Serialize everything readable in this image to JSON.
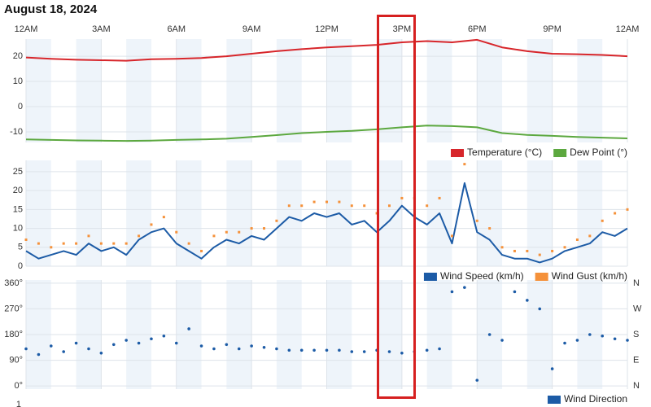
{
  "chart_data": [
    {
      "type": "line",
      "title": "August 18, 2024",
      "xlim": [
        0,
        24
      ],
      "xticks": [
        {
          "value": 0,
          "label": "12AM"
        },
        {
          "value": 3,
          "label": "3AM"
        },
        {
          "value": 6,
          "label": "6AM"
        },
        {
          "value": 9,
          "label": "9AM"
        },
        {
          "value": 12,
          "label": "12PM"
        },
        {
          "value": 15,
          "label": "3PM"
        },
        {
          "value": 18,
          "label": "6PM"
        },
        {
          "value": 21,
          "label": "9PM"
        },
        {
          "value": 24,
          "label": "12AM"
        }
      ],
      "ylim": [
        -14.2,
        26.8
      ],
      "yticks": [
        20,
        10,
        0,
        -10
      ],
      "grid": true,
      "legend": "bottom-right",
      "x": [
        0,
        1,
        2,
        3,
        4,
        5,
        6,
        7,
        8,
        9,
        10,
        11,
        12,
        13,
        14,
        15,
        16,
        17,
        18,
        19,
        20,
        21,
        22,
        23,
        24
      ],
      "series": [
        {
          "name": "Temperature (°C)",
          "color": "#d7262b",
          "values": [
            19.5,
            19,
            18.6,
            18.4,
            18.2,
            18.8,
            19,
            19.3,
            20,
            21,
            22,
            22.8,
            23.5,
            24,
            24.5,
            25.5,
            26,
            25.5,
            26.5,
            23.5,
            22,
            21,
            20.8,
            20.5,
            20
          ]
        },
        {
          "name": "Dew Point (°)",
          "color": "#5ca83f",
          "values": [
            -13,
            -13.2,
            -13.4,
            -13.5,
            -13.6,
            -13.5,
            -13.2,
            -13,
            -12.7,
            -12,
            -11.3,
            -10.5,
            -10,
            -9.6,
            -9,
            -8.2,
            -7.5,
            -7.7,
            -8.2,
            -10.5,
            -11.2,
            -11.6,
            -12,
            -12.3,
            -12.6
          ]
        }
      ]
    },
    {
      "type": "line",
      "xlim": [
        0,
        24
      ],
      "ylim": [
        0,
        28
      ],
      "yticks": [
        25,
        20,
        15,
        10,
        5,
        0
      ],
      "grid": true,
      "legend": "bottom-right",
      "x": [
        0,
        0.5,
        1,
        1.5,
        2,
        2.5,
        3,
        3.5,
        4,
        4.5,
        5,
        5.5,
        6,
        6.5,
        7,
        7.5,
        8,
        8.5,
        9,
        9.5,
        10,
        10.5,
        11,
        11.5,
        12,
        12.5,
        13,
        13.5,
        14,
        14.5,
        15,
        15.5,
        16,
        16.5,
        17,
        17.5,
        18,
        18.5,
        19,
        19.5,
        20,
        20.5,
        21,
        21.5,
        22,
        22.5,
        23,
        23.5,
        24
      ],
      "series": [
        {
          "name": "Wind Speed (km/h)",
          "color": "#1c5ba6",
          "mode": "line",
          "values": [
            4,
            2,
            3,
            4,
            3,
            6,
            4,
            5,
            3,
            7,
            9,
            10,
            6,
            4,
            2,
            5,
            7,
            6,
            8,
            7,
            10,
            13,
            12,
            14,
            13,
            14,
            11,
            12,
            9,
            12,
            16,
            13,
            11,
            14,
            6,
            22,
            9,
            7,
            3,
            2,
            2,
            1,
            2,
            4,
            5,
            6,
            9,
            8,
            10
          ]
        },
        {
          "name": "Wind Gust (km/h)",
          "color": "#f5913a",
          "mode": "markers",
          "values": [
            7,
            6,
            5,
            6,
            6,
            8,
            6,
            6,
            6,
            8,
            11,
            13,
            9,
            6,
            4,
            8,
            9,
            9,
            10,
            10,
            12,
            16,
            16,
            17,
            17,
            17,
            16,
            16,
            14,
            16,
            18,
            18,
            16,
            18,
            8,
            27,
            12,
            10,
            5,
            4,
            4,
            3,
            4,
            5,
            7,
            8,
            12,
            14,
            15
          ]
        }
      ]
    },
    {
      "type": "scatter",
      "xlim": [
        0,
        24
      ],
      "ylim": [
        -11,
        371
      ],
      "yticks": [
        {
          "value": 360,
          "label": "360°"
        },
        {
          "value": 270,
          "label": "270°"
        },
        {
          "value": 180,
          "label": "180°"
        },
        {
          "value": 90,
          "label": "90°"
        },
        {
          "value": 0,
          "label": "0°"
        }
      ],
      "y2lim": [
        -11,
        371
      ],
      "y2ticks": [
        {
          "value": 360,
          "label": "N"
        },
        {
          "value": 270,
          "label": "W"
        },
        {
          "value": 180,
          "label": "S"
        },
        {
          "value": 90,
          "label": "E"
        },
        {
          "value": 0,
          "label": "N"
        }
      ],
      "grid": true,
      "legend": "bottom-right",
      "x": [
        0,
        0.5,
        1,
        1.5,
        2,
        2.5,
        3,
        3.5,
        4,
        4.5,
        5,
        5.5,
        6,
        6.5,
        7,
        7.5,
        8,
        8.5,
        9,
        9.5,
        10,
        10.5,
        11,
        11.5,
        12,
        12.5,
        13,
        13.5,
        14,
        14.5,
        15,
        15.5,
        16,
        16.5,
        17,
        17.5,
        18,
        18.5,
        19,
        19.5,
        20,
        20.5,
        21,
        21.5,
        22,
        22.5,
        23,
        23.5,
        24
      ],
      "series": [
        {
          "name": "Wind Direction",
          "color": "#1c5ba6",
          "values": [
            130,
            110,
            140,
            120,
            150,
            130,
            115,
            145,
            160,
            150,
            165,
            175,
            150,
            200,
            140,
            130,
            145,
            130,
            140,
            135,
            130,
            125,
            125,
            125,
            125,
            125,
            120,
            120,
            125,
            120,
            115,
            120,
            125,
            130,
            330,
            345,
            20,
            180,
            160,
            330,
            300,
            270,
            60,
            150,
            160,
            180,
            175,
            165,
            160
          ]
        }
      ]
    },
    {
      "type": "line",
      "yticks": [
        1
      ]
    }
  ]
}
